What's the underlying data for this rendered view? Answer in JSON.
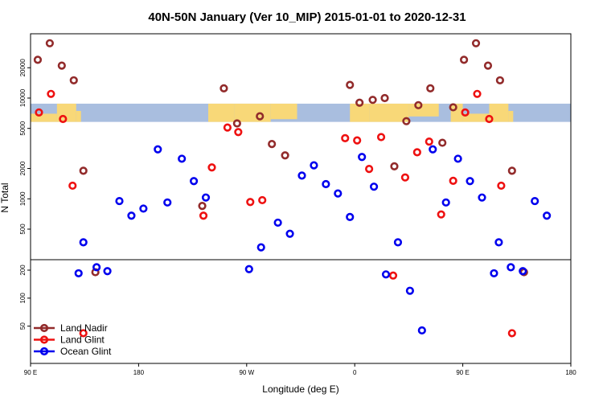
{
  "chart_data": {
    "type": "scatter",
    "title": "40N-50N January (Ver 10_MIP)   2015-01-01 to 2020-12-31",
    "xlabel": "Longitude (deg E)",
    "ylabel": "N Total",
    "xlim": [
      90,
      540
    ],
    "x_tick_values": [
      90,
      180,
      270,
      360,
      450,
      540
    ],
    "x_tick_labels": [
      "90 E",
      "180",
      "90 W",
      "0",
      "90 E",
      "180"
    ],
    "y_scale": "log",
    "ylim": [
      25,
      48000
    ],
    "y_upper_ticks": [
      500,
      1000,
      2000,
      5000,
      10000,
      20000
    ],
    "y_lower_ticks": [
      50,
      100,
      200
    ],
    "y_break": 300,
    "map_strip": {
      "y_range": [
        5800,
        8800
      ],
      "ocean_color": "#a9bedf",
      "land_color": "#f8d878"
    },
    "legend": {
      "position": "bottom-left"
    },
    "series": [
      {
        "name": "Land Nadir",
        "color": "#922b2b",
        "points": [
          [
            96,
            24000
          ],
          [
            106,
            35000
          ],
          [
            116,
            21000
          ],
          [
            126,
            15000
          ],
          [
            134,
            1900
          ],
          [
            144,
            190
          ],
          [
            233,
            850
          ],
          [
            251,
            12500
          ],
          [
            262,
            5600
          ],
          [
            281,
            6600
          ],
          [
            291,
            3500
          ],
          [
            302,
            2700
          ],
          [
            356,
            13500
          ],
          [
            364,
            9000
          ],
          [
            375,
            9600
          ],
          [
            385,
            10000
          ],
          [
            393,
            2100
          ],
          [
            403,
            5900
          ],
          [
            413,
            8500
          ],
          [
            423,
            12500
          ],
          [
            433,
            3600
          ],
          [
            442,
            8100
          ],
          [
            451,
            24000
          ],
          [
            461,
            35000
          ],
          [
            471,
            21000
          ],
          [
            481,
            15000
          ],
          [
            491,
            1900
          ],
          [
            501,
            190
          ]
        ]
      },
      {
        "name": "Land Glint",
        "color": "#ee1111",
        "points": [
          [
            97,
            7200
          ],
          [
            107,
            11000
          ],
          [
            117,
            6200
          ],
          [
            125,
            1350
          ],
          [
            134,
            42
          ],
          [
            234,
            680
          ],
          [
            241,
            2050
          ],
          [
            254,
            5100
          ],
          [
            263,
            4600
          ],
          [
            273,
            930
          ],
          [
            283,
            970
          ],
          [
            352,
            4000
          ],
          [
            362,
            3800
          ],
          [
            372,
            1980
          ],
          [
            382,
            4100
          ],
          [
            392,
            175
          ],
          [
            402,
            1630
          ],
          [
            412,
            2900
          ],
          [
            422,
            3700
          ],
          [
            432,
            700
          ],
          [
            442,
            1510
          ],
          [
            452,
            7200
          ],
          [
            462,
            11000
          ],
          [
            472,
            6200
          ],
          [
            482,
            1350
          ],
          [
            491,
            42
          ]
        ]
      },
      {
        "name": "Ocean Glint",
        "color": "#0000ee",
        "points": [
          [
            130,
            185
          ],
          [
            134,
            370
          ],
          [
            145,
            215
          ],
          [
            154,
            195
          ],
          [
            164,
            950
          ],
          [
            174,
            680
          ],
          [
            184,
            800
          ],
          [
            196,
            3100
          ],
          [
            204,
            920
          ],
          [
            216,
            2500
          ],
          [
            226,
            1500
          ],
          [
            236,
            1030
          ],
          [
            272,
            205
          ],
          [
            282,
            330
          ],
          [
            296,
            580
          ],
          [
            306,
            450
          ],
          [
            316,
            1700
          ],
          [
            326,
            2150
          ],
          [
            336,
            1400
          ],
          [
            346,
            1130
          ],
          [
            356,
            660
          ],
          [
            366,
            2600
          ],
          [
            376,
            1320
          ],
          [
            386,
            180
          ],
          [
            396,
            370
          ],
          [
            406,
            120
          ],
          [
            416,
            45
          ],
          [
            425,
            3100
          ],
          [
            436,
            920
          ],
          [
            446,
            2500
          ],
          [
            456,
            1500
          ],
          [
            466,
            1030
          ],
          [
            476,
            185
          ],
          [
            480,
            370
          ],
          [
            490,
            215
          ],
          [
            500,
            195
          ],
          [
            510,
            950
          ],
          [
            520,
            680
          ]
        ]
      }
    ]
  }
}
